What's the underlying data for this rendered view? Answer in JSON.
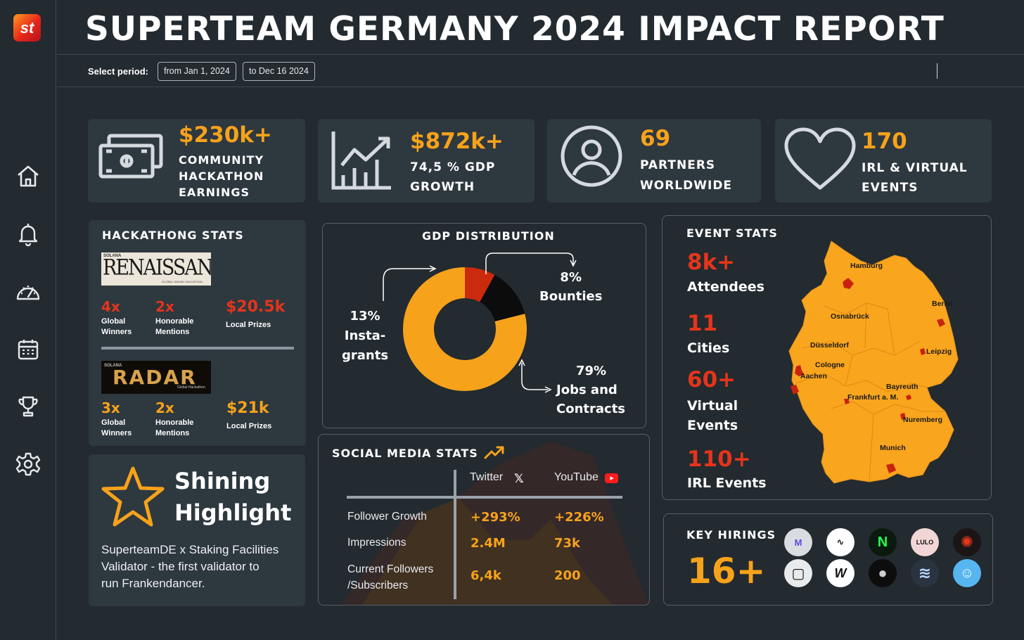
{
  "header": {
    "title": "SUPERTEAM GERMANY 2024 IMPACT REPORT",
    "logo_text": "st",
    "period_label": "Select period:",
    "from_value": "from Jan 1, 2024",
    "to_value": "to Dec 16 2024"
  },
  "sidebar": {
    "items": [
      "home-icon",
      "bell-icon",
      "speedometer-icon",
      "calendar-icon",
      "trophy-icon",
      "gear-icon"
    ]
  },
  "kpis": {
    "earnings": {
      "value": "$230k+",
      "line1": "COMMUNITY",
      "line2": "HACKATHON",
      "line3": "EARNINGS",
      "icon": "money-icon"
    },
    "gdp": {
      "value": "$872k+",
      "line1": "74,5 % GDP",
      "line2": "GROWTH",
      "icon": "growth-chart-icon"
    },
    "partners": {
      "value": "69",
      "line1": "PARTNERS",
      "line2": "WORLDWIDE",
      "icon": "user-circle-icon"
    },
    "events": {
      "value": "170",
      "line1": "IRL & VIRTUAL",
      "line2": "EVENTS",
      "icon": "heart-icon"
    }
  },
  "hackathon": {
    "title": "HACKATHONG STATS",
    "renaissance": {
      "logo_text": "RENAISSANCE",
      "badge": "SOLANA",
      "tagline": "GLOBAL ONLINE HACKATHON",
      "winners": "4x",
      "winners_label1": "Global",
      "winners_label2": "Winners",
      "mentions": "2x",
      "mentions_label1": "Honorable",
      "mentions_label2": "Mentions",
      "prizes": "$20.5k",
      "prizes_label": "Local Prizes"
    },
    "radar": {
      "logo_text": "RADAR",
      "badge": "SOLANA",
      "tagline": "Global Hackathon",
      "winners": "3x",
      "winners_label1": "Global",
      "winners_label2": "Winners",
      "mentions": "2x",
      "mentions_label1": "Honorable",
      "mentions_label2": "Mentions",
      "prizes": "$21k",
      "prizes_label": "Local Prizes"
    }
  },
  "highlight": {
    "title1": "Shining",
    "title2": "Highlight",
    "line1": "SuperteamDE x Staking Facilities",
    "line2": "Validator - the first validator to",
    "line3": "run Frankendancer."
  },
  "gdp_distribution": {
    "title": "GDP DISTRIBUTION",
    "bounties_pct": "8%",
    "bounties_label": "Bounties",
    "grants_pct": "13%",
    "grants_label1": "Insta-",
    "grants_label2": "grants",
    "jobs_pct": "79%",
    "jobs_label1": "Jobs and",
    "jobs_label2": "Contracts"
  },
  "chart_data": {
    "type": "pie",
    "title": "GDP DISTRIBUTION",
    "categories": [
      "Bounties",
      "Instagrants",
      "Jobs and Contracts"
    ],
    "values": [
      8,
      13,
      79
    ],
    "colors": [
      "#cc2a0c",
      "#0c0c0c",
      "#f7a21b"
    ]
  },
  "social": {
    "title": "SOCIAL MEDIA STATS",
    "col_twitter": "Twitter",
    "col_youtube": "YouTube",
    "rows": [
      {
        "label": "Follower Growth",
        "twitter": "+293%",
        "youtube": "+226%"
      },
      {
        "label": "Impressions",
        "twitter": "2.4M",
        "youtube": "73k"
      },
      {
        "label1": "Current Followers",
        "label2": "/Subscribers",
        "twitter": "6,4k",
        "youtube": "200"
      }
    ]
  },
  "events_stats": {
    "title": "EVENT STATS",
    "attendees": "8k+",
    "attendees_label": "Attendees",
    "cities": "11",
    "cities_label": "Cities",
    "virtual": "60+",
    "virtual_label1": "Virtual",
    "virtual_label2": "Events",
    "irl": "110+",
    "irl_label": "IRL Events",
    "city_names": [
      "Hamburg",
      "Berlin",
      "Osnabrück",
      "Düsseldorf",
      "Leipzig",
      "Cologne",
      "Aachen",
      "Bayreuth",
      "Frankfurt a. M.",
      "Nuremberg",
      "Munich"
    ]
  },
  "hirings": {
    "title": "KEY HIRINGS",
    "count": "16+",
    "logos": [
      "M",
      "∿",
      "N",
      "LULO",
      "✺",
      "▢",
      "W",
      "●",
      "≋",
      "☺"
    ]
  }
}
